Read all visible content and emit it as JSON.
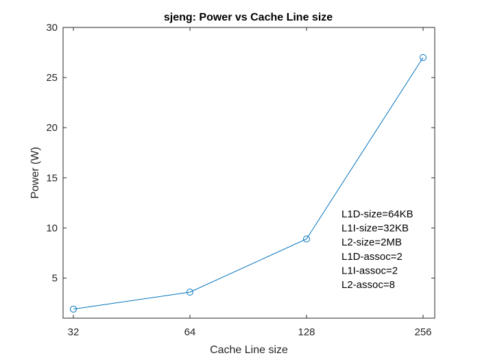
{
  "chart_data": {
    "type": "line",
    "title": "sjeng: Power vs Cache Line size",
    "xlabel": "Cache Line size",
    "ylabel": "Power (W)",
    "x": [
      32,
      64,
      128,
      256
    ],
    "x_scale": "log2",
    "x_ticks": [
      "32",
      "64",
      "128",
      "256"
    ],
    "xlim": [
      32,
      256
    ],
    "ylim": [
      1,
      30
    ],
    "y_ticks": [
      5,
      10,
      15,
      20,
      25,
      30
    ],
    "y_tick_labels": [
      "5",
      "10",
      "15",
      "20",
      "25",
      "30"
    ],
    "grid": false,
    "series": [
      {
        "values": [
          1.9,
          3.6,
          8.9,
          27.0
        ],
        "color": "#0072bd",
        "marker": "circle"
      }
    ],
    "annotation": [
      "L1D-size=64KB",
      "L1I-size=32KB",
      "L2-size=2MB",
      "L1D-assoc=2",
      "L1I-assoc=2",
      "L2-assoc=8"
    ]
  }
}
